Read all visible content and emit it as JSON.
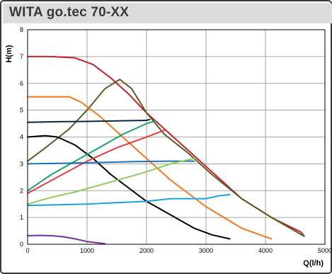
{
  "title": "WITA go.tec 70-XX",
  "chart_data": {
    "type": "line",
    "title": "WITA go.tec 70-XX",
    "xlabel": "Q(l/h)",
    "ylabel": "H(m)",
    "xlim": [
      0,
      5000
    ],
    "ylim": [
      0,
      8
    ],
    "x_ticks": [
      "0",
      "1000",
      "2000",
      "3000",
      "4000",
      "5000"
    ],
    "y_ticks": [
      "0",
      "1",
      "2",
      "3",
      "4",
      "5",
      "6",
      "7",
      "8"
    ],
    "grid": true,
    "series": [
      {
        "color": "#c8202a",
        "x": [
          0,
          400,
          800,
          1100,
          1400,
          1700,
          2000,
          2300,
          2700,
          3100,
          3600,
          4100,
          4600,
          4650
        ],
        "y": [
          7.0,
          7.0,
          6.95,
          6.7,
          6.2,
          5.6,
          4.9,
          4.3,
          3.5,
          2.7,
          1.7,
          1.0,
          0.45,
          0.3
        ]
      },
      {
        "color": "#5a5a2a",
        "x": [
          0,
          300,
          700,
          1000,
          1300,
          1550,
          1750,
          2000,
          2300,
          2700,
          3100,
          3600,
          4100,
          4650
        ],
        "y": [
          3.1,
          3.6,
          4.3,
          5.0,
          5.8,
          6.15,
          5.8,
          4.9,
          4.1,
          3.4,
          2.6,
          1.7,
          1.0,
          0.3
        ]
      },
      {
        "color": "#f07820",
        "x": [
          0,
          500,
          700,
          900,
          1200,
          1500,
          1800,
          2100,
          2400,
          2700,
          3000,
          3300,
          3600,
          4100
        ],
        "y": [
          5.5,
          5.5,
          5.5,
          5.3,
          4.8,
          4.2,
          3.6,
          3.0,
          2.4,
          1.9,
          1.4,
          1.0,
          0.6,
          0.2
        ]
      },
      {
        "color": "#0a2840",
        "x": [
          0,
          500,
          1000,
          1500,
          2000,
          2050
        ],
        "y": [
          4.55,
          4.57,
          4.58,
          4.6,
          4.62,
          4.65
        ]
      },
      {
        "color": "#000000",
        "x": [
          0,
          300,
          500,
          800,
          1100,
          1400,
          1700,
          2000,
          2400,
          2800,
          3100,
          3400
        ],
        "y": [
          4.0,
          4.05,
          4.0,
          3.7,
          3.2,
          2.6,
          2.1,
          1.6,
          1.1,
          0.6,
          0.35,
          0.2
        ]
      },
      {
        "color": "#20a070",
        "x": [
          0,
          400,
          800,
          1200,
          1600,
          2000,
          2150
        ],
        "y": [
          2.0,
          2.6,
          3.1,
          3.6,
          4.1,
          4.5,
          4.6
        ]
      },
      {
        "color": "#e04040",
        "x": [
          0,
          500,
          1000,
          1500,
          2000,
          2300
        ],
        "y": [
          1.9,
          2.5,
          3.1,
          3.6,
          4.0,
          4.25
        ]
      },
      {
        "color": "#2070b0",
        "x": [
          0,
          600,
          1200,
          1800,
          2400,
          2800
        ],
        "y": [
          3.0,
          3.02,
          3.05,
          3.08,
          3.1,
          3.1
        ]
      },
      {
        "color": "#90c860",
        "x": [
          0,
          400,
          800,
          1200,
          1600,
          2000,
          2400,
          2800
        ],
        "y": [
          1.5,
          1.75,
          1.95,
          2.2,
          2.45,
          2.7,
          3.0,
          3.2
        ]
      },
      {
        "color": "#20a0d8",
        "x": [
          0,
          500,
          1000,
          1500,
          2000,
          2400,
          2800,
          3000,
          3200,
          3400
        ],
        "y": [
          1.45,
          1.47,
          1.5,
          1.55,
          1.6,
          1.7,
          1.7,
          1.7,
          1.8,
          1.85
        ]
      },
      {
        "color": "#7030a0",
        "x": [
          0,
          200,
          400,
          600,
          800,
          1000,
          1300
        ],
        "y": [
          0.32,
          0.33,
          0.32,
          0.28,
          0.2,
          0.1,
          0.02
        ]
      }
    ]
  }
}
